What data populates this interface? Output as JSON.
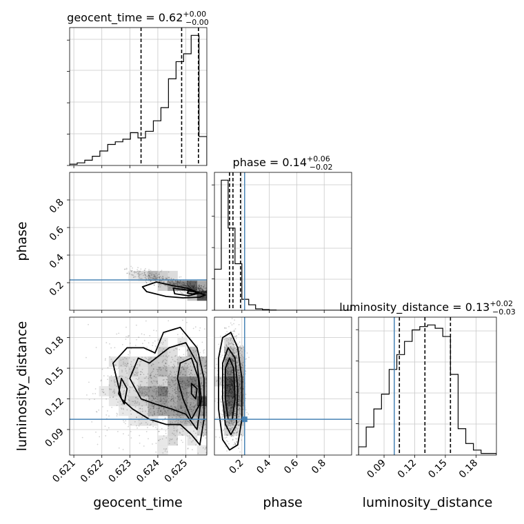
{
  "chart_data": {
    "type": "corner",
    "parameters": [
      "geocent_time",
      "phase",
      "luminosity_distance"
    ],
    "titles": {
      "geocent_time": {
        "label": "geocent_time",
        "median": "0.62",
        "plus": "+0.00",
        "minus": "−0.00"
      },
      "phase": {
        "label": "phase",
        "median": "0.14",
        "plus": "+0.06",
        "minus": "−0.02"
      },
      "luminosity_distance": {
        "label": "luminosity_distance",
        "median": "0.13",
        "plus": "+0.02",
        "minus": "−0.03"
      }
    },
    "axis_ranges": {
      "geocent_time": [
        0.62085,
        0.62575
      ],
      "phase": [
        0.0,
        1.0
      ],
      "luminosity_distance": [
        0.065,
        0.2
      ]
    },
    "ticks": {
      "geocent_time": {
        "values": [
          0.621,
          0.622,
          0.623,
          0.624,
          0.625
        ],
        "labels": [
          "0.621",
          "0.622",
          "0.623",
          "0.624",
          "0.625"
        ]
      },
      "phase_x": {
        "values": [
          0.2,
          0.4,
          0.6,
          0.8
        ],
        "labels": [
          "0.2",
          "0.4",
          "0.6",
          "0.8"
        ]
      },
      "phase_y": {
        "values": [
          0.2,
          0.4,
          0.6,
          0.8
        ],
        "labels": [
          "0.2",
          "0.4",
          "0.6",
          "0.8"
        ]
      },
      "luminosity_distance": {
        "values": [
          0.09,
          0.12,
          0.15,
          0.18
        ],
        "labels": [
          "0.09",
          "0.12",
          "0.15",
          "0.18"
        ]
      }
    },
    "truths": {
      "phase": 0.22,
      "luminosity_distance": 0.1
    },
    "quantiles": {
      "geocent_time": [
        0.6234,
        0.62485,
        0.62545
      ],
      "phase": [
        0.11,
        0.135,
        0.19
      ],
      "luminosity_distance": [
        0.105,
        0.13,
        0.155
      ]
    },
    "histograms": {
      "geocent_time": {
        "edges": [
          0.62085,
          0.62112,
          0.62139,
          0.62166,
          0.62193,
          0.62221,
          0.62248,
          0.62275,
          0.62302,
          0.62329,
          0.62356,
          0.62384,
          0.62411,
          0.62438,
          0.62465,
          0.62492,
          0.62519,
          0.62547,
          0.62575
        ],
        "counts": [
          1,
          2,
          4,
          7,
          11,
          16,
          18,
          20,
          25,
          21,
          26,
          34,
          44,
          66,
          79,
          85,
          99,
          22
        ]
      },
      "phase": {
        "edges": [
          0.0,
          0.05,
          0.1,
          0.15,
          0.2,
          0.25,
          0.3,
          0.35,
          0.4,
          0.45,
          0.5,
          0.55,
          0.6,
          0.65,
          0.7,
          0.75,
          0.8,
          0.85,
          0.9,
          0.95,
          1.0
        ],
        "counts": [
          30,
          95,
          60,
          34,
          8,
          4,
          1,
          0.5,
          0.2,
          0,
          0,
          0,
          0,
          0,
          0,
          0,
          0,
          0,
          0,
          0
        ]
      },
      "luminosity_distance": {
        "edges": [
          0.065,
          0.0725,
          0.08,
          0.0875,
          0.095,
          0.1025,
          0.11,
          0.1175,
          0.125,
          0.1325,
          0.14,
          0.1475,
          0.155,
          0.1625,
          0.17,
          0.1775,
          0.185,
          0.1925,
          0.2
        ],
        "counts": [
          5,
          17,
          28,
          37,
          52,
          61,
          69,
          76,
          78,
          79,
          77,
          72,
          49,
          16,
          7,
          3,
          1,
          1
        ]
      }
    },
    "contours": {
      "phase_vs_geocent_time": [
        [
          [
            0.62395,
            0.205
          ],
          [
            0.6245,
            0.18
          ],
          [
            0.62505,
            0.16
          ],
          [
            0.6255,
            0.125
          ],
          [
            0.62568,
            0.11
          ],
          [
            0.6255,
            0.095
          ],
          [
            0.6249,
            0.09
          ],
          [
            0.6243,
            0.1
          ],
          [
            0.6236,
            0.135
          ],
          [
            0.62345,
            0.17
          ]
        ],
        [
          [
            0.62455,
            0.16
          ],
          [
            0.6251,
            0.145
          ],
          [
            0.6255,
            0.125
          ],
          [
            0.6251,
            0.105
          ],
          [
            0.6246,
            0.12
          ]
        ],
        [
          [
            0.6251,
            0.14
          ],
          [
            0.62545,
            0.13
          ],
          [
            0.62525,
            0.118
          ],
          [
            0.62505,
            0.125
          ]
        ]
      ],
      "luminosity_distance_vs_geocent_time": [
        [
          [
            0.6224,
            0.155
          ],
          [
            0.6229,
            0.17
          ],
          [
            0.6235,
            0.17
          ],
          [
            0.6239,
            0.165
          ],
          [
            0.6242,
            0.185
          ],
          [
            0.6248,
            0.19
          ],
          [
            0.6254,
            0.17
          ],
          [
            0.62565,
            0.14
          ],
          [
            0.62565,
            0.1
          ],
          [
            0.6255,
            0.075
          ],
          [
            0.6252,
            0.085
          ],
          [
            0.6248,
            0.095
          ],
          [
            0.6243,
            0.095
          ],
          [
            0.6237,
            0.1
          ],
          [
            0.6231,
            0.11
          ],
          [
            0.6227,
            0.12
          ]
        ],
        [
          [
            0.623,
            0.14
          ],
          [
            0.6233,
            0.16
          ],
          [
            0.6237,
            0.155
          ],
          [
            0.6244,
            0.17
          ],
          [
            0.625,
            0.175
          ],
          [
            0.6254,
            0.155
          ],
          [
            0.62555,
            0.12
          ],
          [
            0.6254,
            0.09
          ],
          [
            0.625,
            0.105
          ],
          [
            0.6245,
            0.11
          ],
          [
            0.6239,
            0.115
          ],
          [
            0.6234,
            0.12
          ]
        ],
        [
          [
            0.6248,
            0.155
          ],
          [
            0.6252,
            0.16
          ],
          [
            0.62545,
            0.14
          ],
          [
            0.6255,
            0.115
          ],
          [
            0.6252,
            0.1
          ],
          [
            0.6249,
            0.12
          ],
          [
            0.6247,
            0.14
          ]
        ],
        [
          [
            0.6252,
            0.135
          ],
          [
            0.6254,
            0.13
          ],
          [
            0.62535,
            0.12
          ],
          [
            0.6252,
            0.125
          ]
        ],
        [
          [
            0.6226,
            0.125
          ],
          [
            0.6227,
            0.14
          ],
          [
            0.6229,
            0.13
          ],
          [
            0.6228,
            0.115
          ]
        ]
      ],
      "luminosity_distance_vs_phase": [
        [
          [
            0.03,
            0.16
          ],
          [
            0.06,
            0.18
          ],
          [
            0.12,
            0.185
          ],
          [
            0.17,
            0.17
          ],
          [
            0.2,
            0.14
          ],
          [
            0.2,
            0.1
          ],
          [
            0.17,
            0.075
          ],
          [
            0.11,
            0.07
          ],
          [
            0.06,
            0.08
          ],
          [
            0.03,
            0.11
          ]
        ],
        [
          [
            0.06,
            0.155
          ],
          [
            0.1,
            0.17
          ],
          [
            0.15,
            0.16
          ],
          [
            0.17,
            0.13
          ],
          [
            0.16,
            0.095
          ],
          [
            0.12,
            0.085
          ],
          [
            0.08,
            0.095
          ],
          [
            0.06,
            0.12
          ]
        ],
        [
          [
            0.08,
            0.15
          ],
          [
            0.11,
            0.16
          ],
          [
            0.14,
            0.15
          ],
          [
            0.15,
            0.12
          ],
          [
            0.13,
            0.1
          ],
          [
            0.1,
            0.1
          ],
          [
            0.08,
            0.12
          ]
        ]
      ]
    },
    "colors": {
      "truth": "#4682b4",
      "line": "#000000",
      "grid": "#c8c8c8",
      "points": "#000000"
    }
  }
}
